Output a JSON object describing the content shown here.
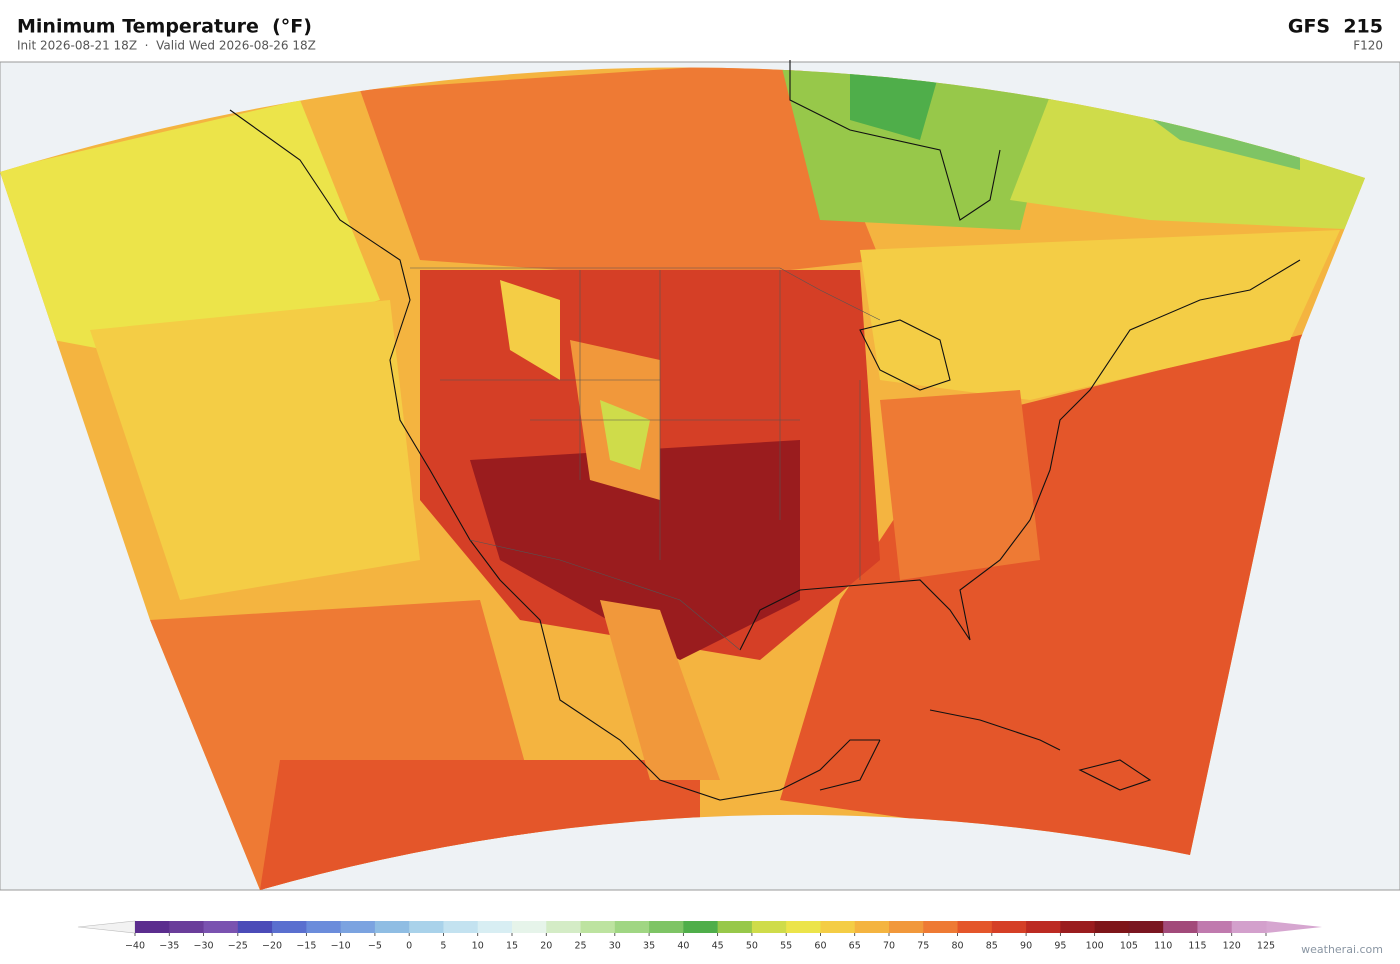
{
  "header": {
    "title": "Minimum Temperature  (°F)",
    "subtitle": "Init 2026-08-21 18Z  ·  Valid Wed 2026-08-26 18Z",
    "model": "GFS  215",
    "forecast_hour": "F120"
  },
  "colorbar": {
    "ticks": [
      {
        "value": -40,
        "label": "−40"
      },
      {
        "value": -35,
        "label": "−35"
      },
      {
        "value": -30,
        "label": "−30"
      },
      {
        "value": -25,
        "label": "−25"
      },
      {
        "value": -20,
        "label": "−20"
      },
      {
        "value": -15,
        "label": "−15"
      },
      {
        "value": -10,
        "label": "−10"
      },
      {
        "value": -5,
        "label": "−5"
      },
      0,
      5,
      10,
      15,
      20,
      25,
      30,
      35,
      40,
      45,
      50,
      55,
      60,
      65,
      70,
      75,
      80,
      85,
      90,
      95,
      100,
      105,
      110,
      115,
      120,
      125
    ],
    "colors": [
      "#5b2d8e",
      "#6a3d9a",
      "#7a52b0",
      "#4b4bb8",
      "#5a6fcf",
      "#6b8cdb",
      "#7ba3e0",
      "#8fbde3",
      "#a9d2ea",
      "#c3e2f0",
      "#d8eef3",
      "#e6f4ea",
      "#d4ecc6",
      "#bde3a0",
      "#a0d683",
      "#7ec465",
      "#4fae4a",
      "#97c84a",
      "#cfdc4a",
      "#ece44a",
      "#f4cd45",
      "#f4b440",
      "#f1983b",
      "#ee7a34",
      "#e4562a",
      "#d53f26",
      "#bc2a22",
      "#9a1c1e",
      "#7e1519",
      "#7a1620",
      "#a24a7a",
      "#c07aae",
      "#d3a0cc"
    ]
  },
  "watermark": "weatherai.com"
}
